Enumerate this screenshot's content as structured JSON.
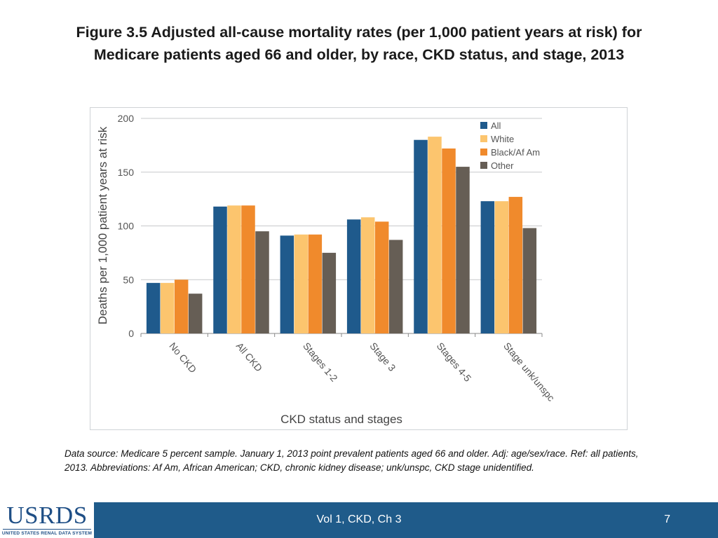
{
  "slide": {
    "title_line1": "Figure 3.5  Adjusted all-cause mortality rates (per 1,000 patient years at risk) for",
    "title_line2": "Medicare patients aged 66 and older, by race, CKD status, and stage, 2013",
    "footnote": "Data source: Medicare 5 percent sample. January 1, 2013 point prevalent patients aged 66 and older. Adj: age/sex/race. Ref: all patients, 2013. Abbreviations: Af Am, African American; CKD, chronic kidney disease; unk/unspc, CKD stage unidentified.",
    "footer_ref": "Vol 1, CKD, Ch 3",
    "page_number": "7",
    "logo_text": "USRDS",
    "logo_subtext": "UNITED STATES RENAL DATA SYSTEM"
  },
  "chart_data": {
    "type": "bar",
    "title": "",
    "xlabel": "CKD status and stages",
    "ylabel": "Deaths per 1,000 patient years at risk",
    "ylim": [
      0,
      200
    ],
    "yticks": [
      0,
      50,
      100,
      150,
      200
    ],
    "grid": true,
    "legend_position": "top-right",
    "categories": [
      "No CKD",
      "All CKD",
      "Stages 1-2",
      "Stage 3",
      "Stages 4-5",
      "Stage unk/unspc"
    ],
    "series": [
      {
        "name": "All",
        "color": "#1f5a8c",
        "values": [
          47,
          118,
          91,
          106,
          180,
          123
        ]
      },
      {
        "name": "White",
        "color": "#fcc56e",
        "values": [
          47,
          119,
          92,
          108,
          183,
          123
        ]
      },
      {
        "name": "Black/Af Am",
        "color": "#f08a2c",
        "values": [
          50,
          119,
          92,
          104,
          172,
          127
        ]
      },
      {
        "name": "Other",
        "color": "#665e55",
        "values": [
          37,
          95,
          75,
          87,
          155,
          98
        ]
      }
    ]
  }
}
